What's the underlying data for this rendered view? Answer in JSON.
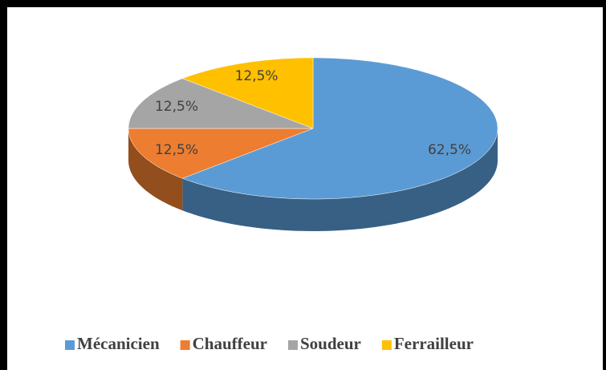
{
  "chart_data": {
    "type": "pie",
    "categories": [
      "Mécanicien",
      "Chauffeur",
      "Soudeur",
      "Ferrailleur"
    ],
    "values": [
      62.5,
      12.5,
      12.5,
      12.5
    ],
    "value_labels": [
      "62,5%",
      "12,5%",
      "12,5%",
      "12,5%"
    ],
    "colors": [
      "#5b9bd5",
      "#ed7d31",
      "#a5a5a5",
      "#ffc000"
    ],
    "legend": "bottom"
  }
}
